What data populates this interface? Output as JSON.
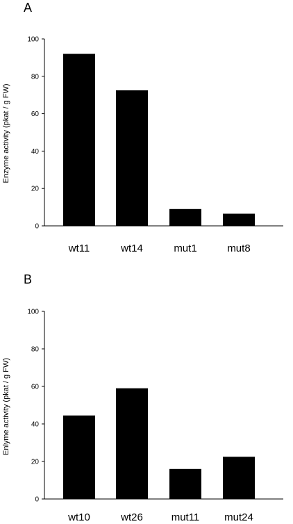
{
  "chart_data": [
    {
      "type": "bar",
      "panel_label": "A",
      "categories": [
        "wt11",
        "wt14",
        "mut1",
        "mut8"
      ],
      "values": [
        92,
        72.5,
        9,
        6.5
      ],
      "ylabel": "Enzyme activity (pkat / g FW)",
      "xlabel": "",
      "ylim": [
        0,
        100
      ],
      "yticks": [
        "0",
        "20",
        "40",
        "60",
        "80",
        "100"
      ],
      "bar_color": "#000000",
      "grid": false,
      "legend": "none"
    },
    {
      "type": "bar",
      "panel_label": "B",
      "categories": [
        "wt10",
        "wt26",
        "mut11",
        "mut24"
      ],
      "values": [
        44.5,
        59,
        16,
        22.5
      ],
      "ylabel": "Enlyme activity (pkat / g FW)",
      "xlabel": "",
      "ylim": [
        0,
        100
      ],
      "yticks": [
        "0",
        "20",
        "40",
        "60",
        "80",
        "100"
      ],
      "bar_color": "#000000",
      "grid": false,
      "legend": "none"
    }
  ]
}
